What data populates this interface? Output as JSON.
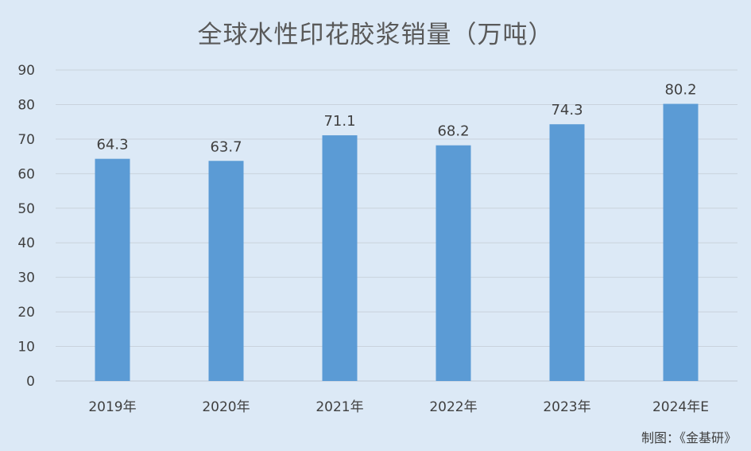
{
  "chart_data": {
    "type": "bar",
    "title": "全球水性印花胶浆销量（万吨）",
    "categories": [
      "2019年",
      "2020年",
      "2021年",
      "2022年",
      "2023年",
      "2024年E"
    ],
    "values": [
      64.3,
      63.7,
      71.1,
      68.2,
      74.3,
      80.2
    ],
    "value_labels": [
      "64.3",
      "63.7",
      "71.1",
      "68.2",
      "74.3",
      "80.2"
    ],
    "y_ticks": [
      "0",
      "10",
      "20",
      "30",
      "40",
      "50",
      "60",
      "70",
      "80",
      "90"
    ],
    "xlabel": "",
    "ylabel": "",
    "ylim": [
      0,
      90
    ],
    "grid": true,
    "legend": "none",
    "bar_color": "#5b9bd5",
    "grid_color": "#c9d2dc",
    "background_color": "#dce9f6"
  },
  "source": "制图：《金基研》"
}
